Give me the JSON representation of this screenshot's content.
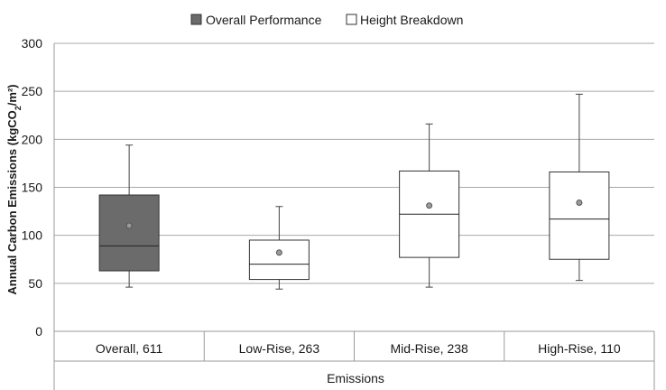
{
  "chart_data": {
    "type": "box",
    "title": "",
    "xlabel": "Emissions",
    "ylabel_parts": {
      "main": "Annual Carbon Emissions  (kgCO",
      "sub": "2",
      "tail": "/m²)"
    },
    "ylim": [
      0,
      300
    ],
    "yticks": [
      0,
      50,
      100,
      150,
      200,
      250,
      300
    ],
    "grid": true,
    "legend_position": "top",
    "legend": [
      {
        "label": "Overall Performance",
        "color": "#6b6b6b"
      },
      {
        "label": "Height Breakdown",
        "color": "#ffffff"
      }
    ],
    "categories": [
      "Overall, 611",
      "Low-Rise, 263",
      "Mid-Rise, 238",
      "High-Rise, 110"
    ],
    "boxes": [
      {
        "category": "Overall, 611",
        "min": 46,
        "q1": 63,
        "median": 89,
        "q3": 142,
        "max": 194,
        "mean": 110,
        "fill": "#6b6b6b"
      },
      {
        "category": "Low-Rise, 263",
        "min": 44,
        "q1": 54,
        "median": 70,
        "q3": 95,
        "max": 130,
        "mean": 82,
        "fill": "#ffffff"
      },
      {
        "category": "Mid-Rise, 238",
        "min": 46,
        "q1": 77,
        "median": 122,
        "q3": 167,
        "max": 216,
        "mean": 131,
        "fill": "#ffffff"
      },
      {
        "category": "High-Rise, 110",
        "min": 53,
        "q1": 75,
        "median": 117,
        "q3": 166,
        "max": 247,
        "mean": 134,
        "fill": "#ffffff"
      }
    ]
  }
}
